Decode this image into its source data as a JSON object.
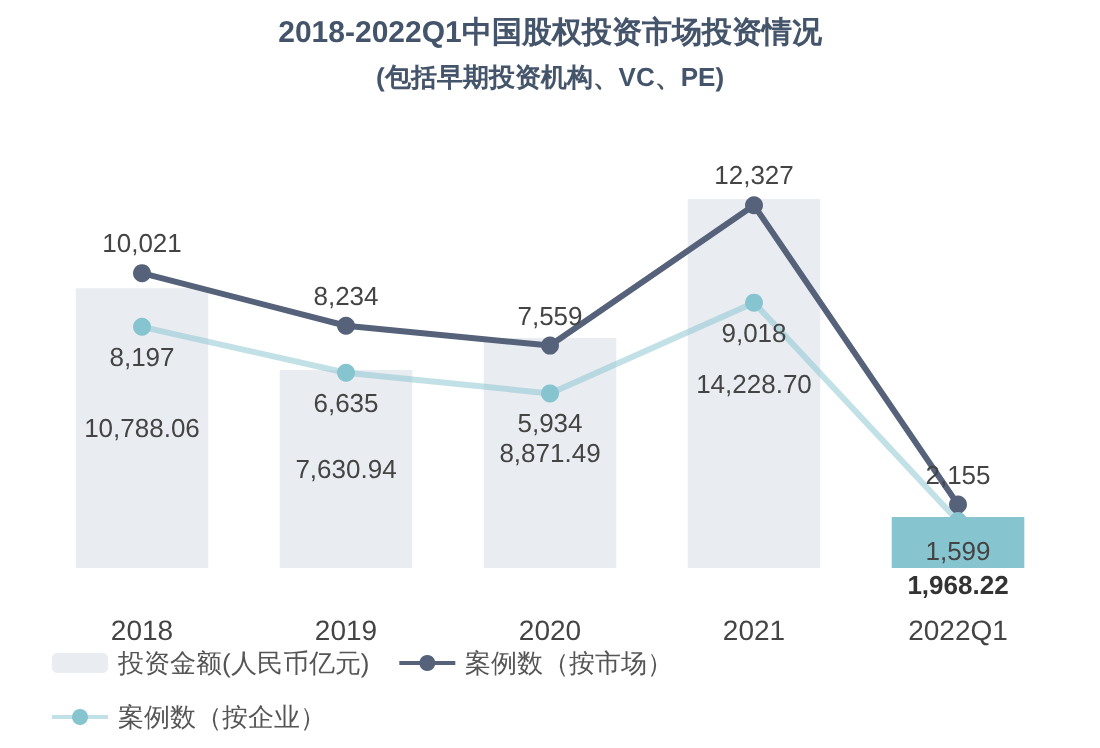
{
  "chart_data": {
    "type": "bar",
    "title": "2018-2022Q1中国股权投资市场投资情况",
    "subtitle": "(包括早期投资机构、VC、PE)",
    "categories": [
      "2018",
      "2019",
      "2020",
      "2021",
      "2022Q1"
    ],
    "series": [
      {
        "name": "投资金额(人民币亿元)",
        "colors": [
          "#e9edf1",
          "#e9edf1",
          "#e9edf1",
          "#e9edf1",
          "#86c4cf"
        ],
        "values": [
          10788.06,
          7630.94,
          8871.49,
          14228.7,
          1968.22
        ],
        "value_labels": [
          "10,788.06",
          "7,630.94",
          "8,871.49",
          "14,228.70",
          "1,968.22"
        ]
      },
      {
        "name": "案例数（按市场）",
        "type": "line",
        "axis": "y2",
        "color": "#55627a",
        "values": [
          10021,
          8234,
          7559,
          12327,
          2155
        ],
        "value_labels": [
          "10,021",
          "8,234",
          "7,559",
          "12,327",
          "2,155"
        ]
      },
      {
        "name": "案例数（按企业）",
        "type": "line",
        "axis": "y2",
        "color": "#86c4cf",
        "values": [
          8197,
          6635,
          5934,
          9018,
          1599
        ],
        "value_labels": [
          "8,197",
          "6,635",
          "5,934",
          "9,018",
          "1,599"
        ]
      }
    ],
    "tick_labels": "x",
    "legend": "bottom",
    "marker": "circle"
  }
}
